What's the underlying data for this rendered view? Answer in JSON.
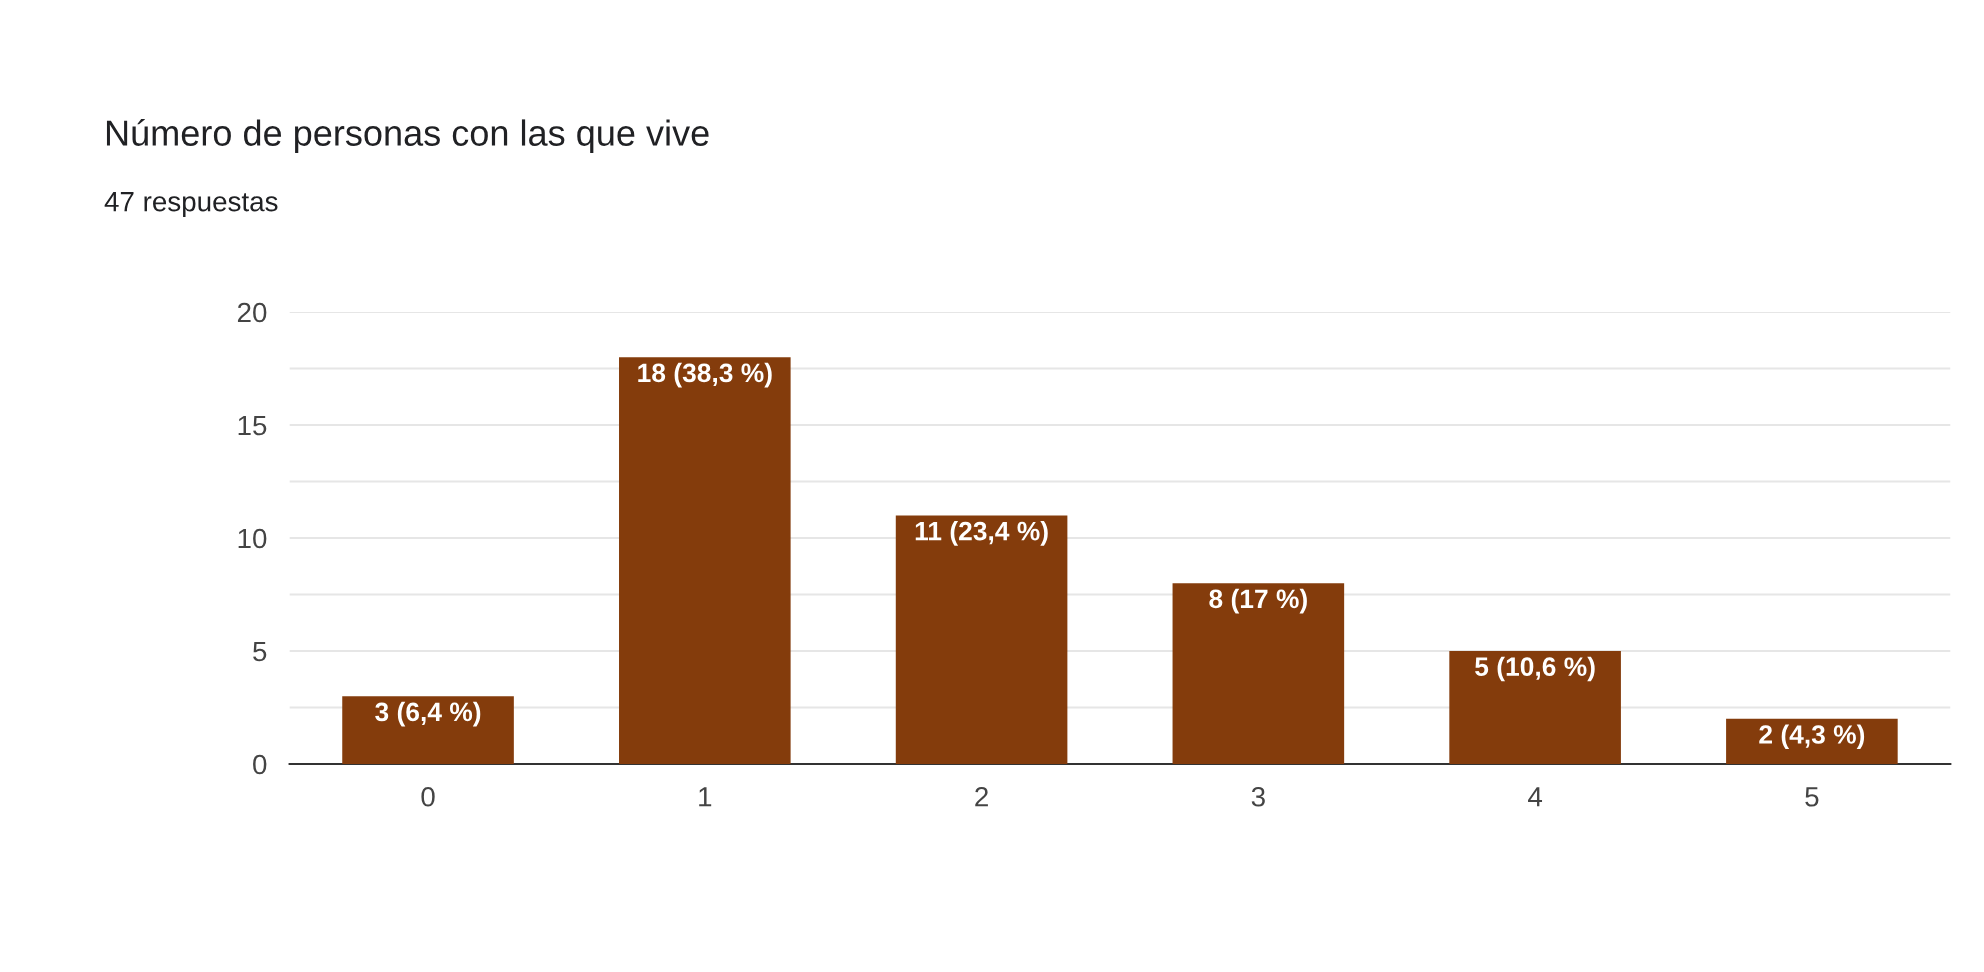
{
  "chart_data": {
    "type": "bar",
    "title": "Número de personas con las que vive",
    "subtitle": "47 respuestas",
    "categories": [
      "0",
      "1",
      "2",
      "3",
      "4",
      "5"
    ],
    "values": [
      3,
      18,
      11,
      8,
      5,
      2
    ],
    "value_labels": [
      "3 (6,4 %)",
      "18 (38,3 %)",
      "11 (23,4 %)",
      "8 (17 %)",
      "5 (10,6 %)",
      "2 (4,3 %)"
    ],
    "color": "#843c0c",
    "ylim": [
      0,
      20
    ],
    "yticks": [
      0,
      {
        "value": 2.5,
        "label": null
      },
      5,
      {
        "value": 7.5,
        "label": null
      },
      10,
      {
        "value": 12.5,
        "label": null
      },
      15,
      {
        "value": 17.5,
        "label": null
      },
      20
    ],
    "grid": "y",
    "legend": false
  }
}
